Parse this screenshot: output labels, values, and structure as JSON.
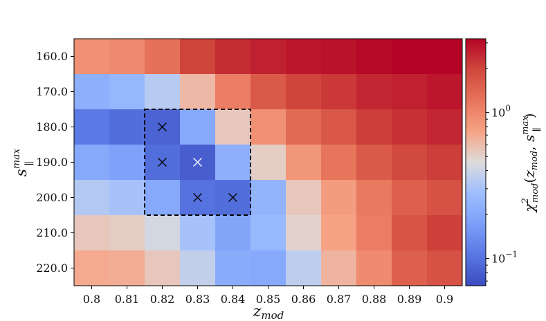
{
  "chart_data": {
    "type": "heatmap",
    "x": [
      "0.8",
      "0.81",
      "0.82",
      "0.83",
      "0.84",
      "0.85",
      "0.86",
      "0.87",
      "0.88",
      "0.89",
      "0.9"
    ],
    "y": [
      "160.0",
      "170.0",
      "180.0",
      "190.0",
      "200.0",
      "210.0",
      "220.0"
    ],
    "xlabel": "z_mod",
    "ylabel": "s_∥^max",
    "colorbar_label": "χ²_mod(z_mod, s_∥^max)",
    "colorbar_ticks": [
      "10^0",
      "10^-1"
    ],
    "colorscale": "coolwarm (log)",
    "color_range": [
      0.065,
      3.2
    ],
    "values": [
      [
        0.9,
        0.95,
        1.25,
        2.0,
        2.4,
        2.6,
        2.8,
        2.9,
        3.1,
        3.2,
        3.2
      ],
      [
        0.22,
        0.25,
        0.34,
        0.62,
        1.1,
        1.6,
        2.0,
        2.2,
        2.5,
        2.6,
        2.8
      ],
      [
        0.11,
        0.095,
        0.085,
        0.2,
        0.55,
        0.9,
        1.35,
        1.65,
        2.1,
        2.3,
        2.5
      ],
      [
        0.2,
        0.18,
        0.095,
        0.08,
        0.22,
        0.52,
        0.85,
        1.2,
        1.6,
        1.9,
        2.1
      ],
      [
        0.33,
        0.3,
        0.2,
        0.1,
        0.095,
        0.24,
        0.55,
        0.8,
        1.15,
        1.5,
        1.75
      ],
      [
        0.55,
        0.52,
        0.42,
        0.3,
        0.19,
        0.26,
        0.5,
        0.75,
        1.1,
        1.7,
        2.05
      ],
      [
        0.7,
        0.68,
        0.55,
        0.37,
        0.21,
        0.2,
        0.36,
        0.64,
        0.95,
        1.5,
        1.75
      ]
    ],
    "markers": [
      {
        "x": "0.82",
        "y": "180.0",
        "color": "black"
      },
      {
        "x": "0.82",
        "y": "190.0",
        "color": "black"
      },
      {
        "x": "0.83",
        "y": "190.0",
        "color": "white"
      },
      {
        "x": "0.83",
        "y": "200.0",
        "color": "black"
      },
      {
        "x": "0.84",
        "y": "200.0",
        "color": "black"
      }
    ],
    "highlight_box": {
      "x": [
        "0.82",
        "0.84"
      ],
      "y": [
        "180.0",
        "200.0"
      ],
      "style": "dashed"
    }
  }
}
